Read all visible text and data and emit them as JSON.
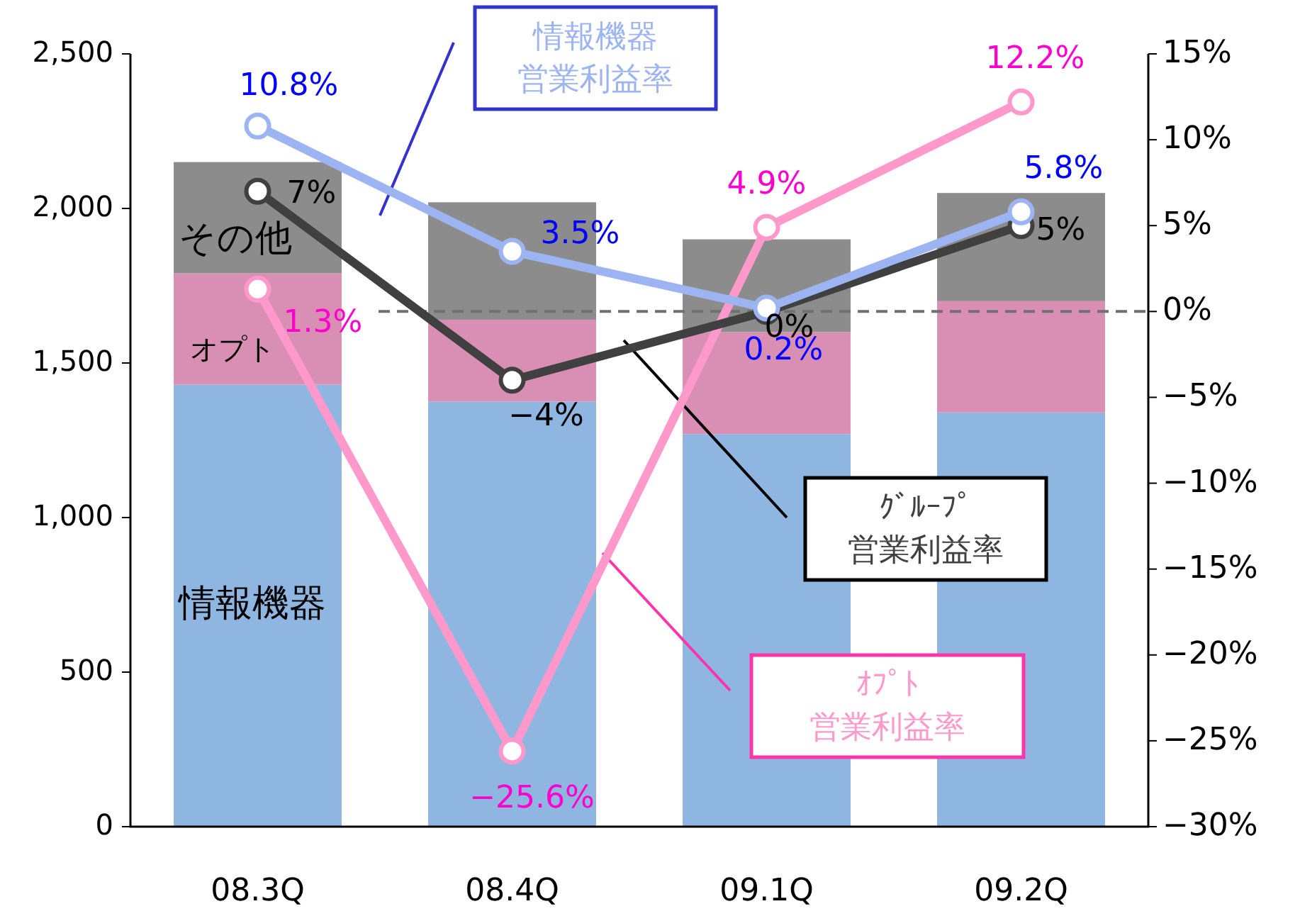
{
  "chart_data": {
    "type": "bar",
    "stacked": true,
    "categories": [
      "08.3Q",
      "08.4Q",
      "09.1Q",
      "09.2Q"
    ],
    "ylim": [
      0,
      2500
    ],
    "yticks": [
      0,
      500,
      {
        "value": 1000,
        "label": "1,000"
      },
      {
        "value": 1500,
        "label": "1,500"
      },
      {
        "value": 2000,
        "label": "2,000"
      },
      {
        "value": 2500,
        "label": "2,500"
      }
    ],
    "y2lim": [
      -30,
      15
    ],
    "y2ticks": [
      {
        "value": -30,
        "label": "−30%"
      },
      {
        "value": -25,
        "label": "−25%"
      },
      {
        "value": -20,
        "label": "−20%"
      },
      {
        "value": -15,
        "label": "−15%"
      },
      {
        "value": -10,
        "label": "−10%"
      },
      {
        "value": -5,
        "label": "−5%"
      },
      {
        "value": 0,
        "label": "0%"
      },
      {
        "value": 5,
        "label": "5%"
      },
      {
        "value": 10,
        "label": "10%"
      },
      {
        "value": 15,
        "label": "15%"
      }
    ],
    "series": [
      {
        "name": "情報機器",
        "color": "#8fb6e0",
        "values": [
          1430,
          1375,
          1270,
          1340
        ]
      },
      {
        "name": "オプト",
        "color": "#d98fb4",
        "values": [
          360,
          265,
          330,
          360
        ]
      },
      {
        "name": "その他",
        "color": "#8c8c8c",
        "values": [
          360,
          380,
          300,
          350
        ]
      },
      {
        "type": "line",
        "axis": "y2",
        "name": "情報機器営業利益率",
        "color": "#9db4f2",
        "values": [
          10.8,
          3.5,
          0.2,
          5.8
        ],
        "value_labels": [
          "10.8%",
          "3.5%",
          "0.2%",
          "5.8%"
        ]
      },
      {
        "type": "line",
        "axis": "y2",
        "name": "ｸﾞﾙｰﾌﾟ営業利益率",
        "color": "#404040",
        "values": [
          7,
          -4,
          0,
          5
        ],
        "value_labels": [
          "7%",
          "−4%",
          "0%",
          "5%"
        ]
      },
      {
        "type": "line",
        "axis": "y2",
        "name": "ｵﾌﾟﾄ営業利益率",
        "color": "#ff99cc",
        "values": [
          1.3,
          -25.6,
          4.9,
          12.2
        ],
        "value_labels": [
          "1.3%",
          "−25.6%",
          "4.9%",
          "12.2%"
        ]
      }
    ],
    "ref_lines": [
      {
        "axis": "y2",
        "value": 0,
        "color": "#707070",
        "line_style": "dashed"
      }
    ],
    "marker": "circle"
  }
}
